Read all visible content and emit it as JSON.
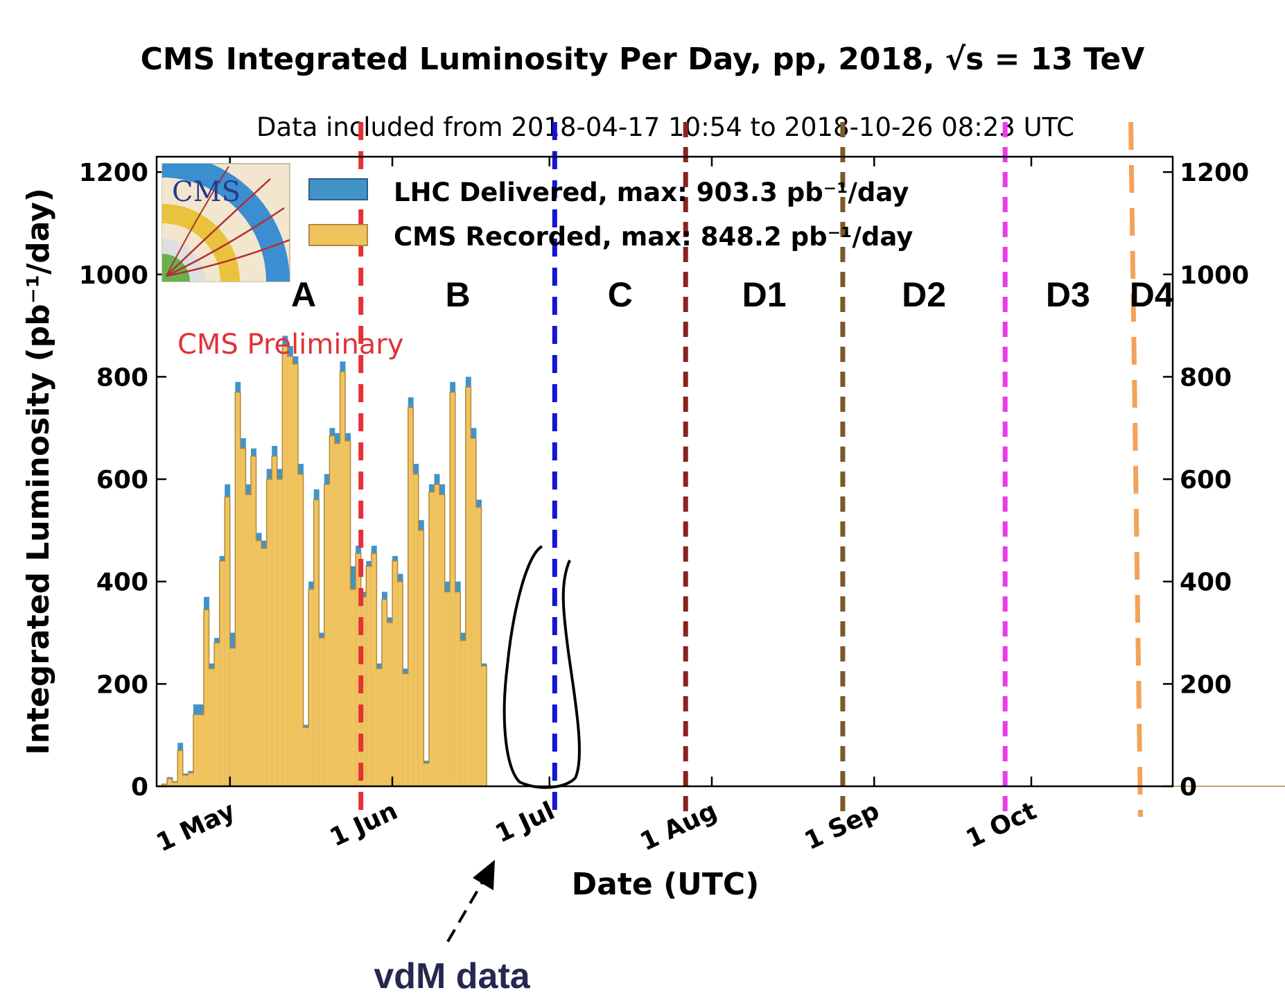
{
  "colors": {
    "delivered": "#4293c8",
    "recorded": "#f0c35e",
    "bar_edge": "#b08a3c",
    "prelim": "#e0313a",
    "annotation": "#252850",
    "era_lines": [
      "#e53135",
      "#1414d6",
      "#8b2323",
      "#7a5a28",
      "#ea3be8",
      "#f2a35a"
    ]
  },
  "header": {
    "title": "CMS Integrated Luminosity Per Day, pp, 2018, √s = 13 TeV",
    "subtitle": "Data included from 2018-04-17 10:54 to 2018-10-26 08:23 UTC"
  },
  "logo": {
    "text": "CMS",
    "icon": "cms-detector-logo"
  },
  "preliminary_label": "CMS Preliminary",
  "annotation": {
    "text": "vdM data"
  },
  "chart_data": {
    "type": "bar",
    "title": "CMS Integrated Luminosity Per Day, pp, 2018, √s = 13 TeV",
    "subtitle": "Data included from 2018-04-17 10:54 to 2018-10-26 08:23 UTC",
    "xlabel": "Date (UTC)",
    "ylabel": "Integrated Luminosity (pb⁻¹/day)",
    "ylim": [
      0,
      1230
    ],
    "xlim": [
      "2018-04-17",
      "2018-10-28"
    ],
    "y_ticks": [
      0,
      200,
      400,
      600,
      800,
      1000,
      1200
    ],
    "x_ticks": [
      {
        "date": "2018-05-01",
        "label": "1 May"
      },
      {
        "date": "2018-06-01",
        "label": "1 Jun"
      },
      {
        "date": "2018-07-01",
        "label": "1 Jul"
      },
      {
        "date": "2018-08-01",
        "label": "1 Aug"
      },
      {
        "date": "2018-09-01",
        "label": "1 Sep"
      },
      {
        "date": "2018-10-01",
        "label": "1 Oct"
      }
    ],
    "grid": false,
    "legend_position": "top-left",
    "legend": [
      {
        "series": "delivered",
        "label": "LHC Delivered, max: 903.3 pb⁻¹/day"
      },
      {
        "series": "recorded",
        "label": "CMS Recorded, max: 848.2 pb⁻¹/day"
      }
    ],
    "start_date": "2018-04-18",
    "series": [
      {
        "name": "LHC Delivered",
        "values": [
          5,
          18,
          10,
          85,
          25,
          30,
          160,
          160,
          370,
          240,
          290,
          450,
          590,
          300,
          790,
          680,
          590,
          660,
          495,
          480,
          620,
          665,
          620,
          880,
          860,
          840,
          630,
          120,
          400,
          580,
          300,
          610,
          700,
          690,
          830,
          690,
          430,
          470,
          380,
          440,
          470,
          240,
          380,
          330,
          450,
          415,
          230,
          760,
          630,
          520,
          50,
          590,
          610,
          590,
          400,
          790,
          400,
          300,
          800,
          700,
          560,
          240,
          0,
          0,
          0,
          0,
          0,
          0,
          0,
          0,
          0,
          0,
          0,
          0,
          0,
          0,
          0,
          0,
          0,
          0,
          0,
          0,
          0,
          0,
          0,
          0,
          0,
          0,
          0,
          0,
          0,
          0,
          0,
          0,
          0,
          0,
          0,
          0,
          0,
          0,
          0,
          0,
          0,
          0,
          0,
          0,
          0,
          0,
          0,
          0,
          0,
          0,
          0,
          0,
          0,
          0,
          0,
          0,
          0,
          0,
          0,
          0,
          0,
          0,
          0,
          0,
          0,
          0,
          0,
          0,
          0,
          0,
          0,
          0,
          0,
          0,
          0,
          0,
          0,
          0,
          0,
          0,
          0,
          0,
          0,
          0,
          0,
          0,
          0,
          0,
          0,
          0,
          0,
          0,
          0,
          0,
          0,
          0,
          0,
          0,
          0,
          0,
          0,
          0,
          0,
          0,
          0,
          0,
          0,
          0,
          0,
          0,
          0,
          0,
          0,
          0,
          0,
          0,
          0,
          0,
          0,
          0,
          0,
          0,
          0,
          0,
          0,
          0,
          0,
          0,
          0,
          0,
          0,
          0,
          0,
          0,
          0,
          0,
          0,
          0,
          0,
          0,
          0,
          0,
          0,
          0,
          0,
          0,
          0,
          0,
          0,
          0,
          0,
          0
        ]
      },
      {
        "name": "CMS Recorded",
        "values": [
          4,
          15,
          8,
          70,
          22,
          26,
          140,
          140,
          345,
          230,
          280,
          440,
          565,
          270,
          770,
          660,
          570,
          645,
          480,
          465,
          600,
          645,
          600,
          860,
          840,
          825,
          610,
          115,
          385,
          560,
          290,
          590,
          685,
          670,
          810,
          675,
          385,
          455,
          370,
          430,
          455,
          230,
          365,
          320,
          440,
          400,
          220,
          740,
          610,
          500,
          45,
          575,
          590,
          570,
          380,
          770,
          380,
          285,
          780,
          680,
          545,
          235,
          0,
          0,
          0,
          0,
          0,
          0,
          0,
          0,
          0,
          0,
          0,
          0,
          0,
          0,
          0,
          0,
          0,
          0,
          0,
          0,
          0,
          0,
          0,
          0,
          0,
          0,
          0,
          0,
          0,
          0,
          0,
          0,
          0,
          0,
          0,
          0,
          0,
          0,
          0,
          0,
          0,
          0,
          0,
          0,
          0,
          0,
          0,
          0,
          0,
          0,
          0,
          0,
          0,
          0,
          0,
          0,
          0,
          0,
          0,
          0,
          0,
          0,
          0,
          0,
          0,
          0,
          0,
          0,
          0,
          0,
          0,
          0,
          0,
          0,
          0,
          0,
          0,
          0,
          0,
          0,
          0,
          0,
          0,
          0,
          0,
          0,
          0,
          0,
          0,
          0,
          0,
          0,
          0,
          0,
          0,
          0,
          0,
          0,
          0,
          0,
          0,
          0,
          0,
          0,
          0,
          0,
          0,
          0,
          0,
          0,
          0,
          0,
          0,
          0,
          0,
          0,
          0,
          0,
          0,
          0,
          0,
          0,
          0,
          0,
          0,
          0,
          0,
          0,
          0,
          0,
          0,
          0,
          0,
          0,
          0,
          0,
          0,
          0,
          0,
          0,
          0,
          0,
          0,
          0,
          0,
          0,
          0,
          0,
          0,
          0,
          0,
          0,
          0
        ]
      }
    ],
    "eras": [
      {
        "label": "A",
        "boundary_date": "2018-05-26"
      },
      {
        "label": "B",
        "boundary_date": "2018-07-02"
      },
      {
        "label": "C",
        "boundary_date": "2018-07-27"
      },
      {
        "label": "D1",
        "boundary_date": "2018-08-26"
      },
      {
        "label": "D2",
        "boundary_date": "2018-09-26"
      },
      {
        "label": "D3",
        "boundary_date": "2018-10-20"
      },
      {
        "label": "D4",
        "boundary_date": null
      }
    ]
  }
}
